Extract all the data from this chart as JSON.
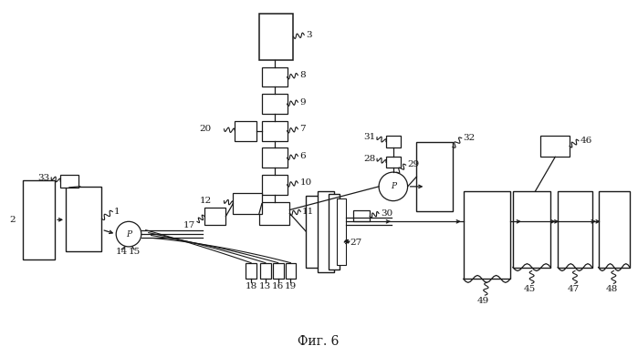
{
  "title": "Фиг. 6",
  "bg_color": "#ffffff",
  "fig_width": 6.99,
  "fig_height": 3.91,
  "line_color": "#1a1a1a",
  "box_edge_color": "#1a1a1a",
  "box_face_color": "#ffffff",
  "label_font_size": 7.5
}
